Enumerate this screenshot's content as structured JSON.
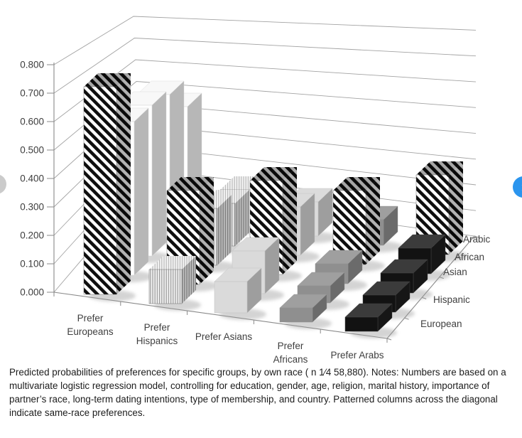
{
  "figure_viewer": {
    "prev_button_glyph": "‹",
    "next_button_glyph": "›",
    "accent_color": "#2b95ee"
  },
  "caption": "Predicted probabilities of preferences for specific groups, by own race ( n 1⁄4 58,880). Notes: Numbers are based on a multivariate logistic regression model, controlling for education, gender, age, religion, marital history, importance of partner’s race, long-term dating intentions, type of membership, and country. Patterned columns across the diagonal indicate same-race preferences.",
  "chart_data": {
    "type": "bar",
    "style": "3d-column",
    "categories": [
      "Prefer Europeans",
      "Prefer Hispanics",
      "Prefer Asians",
      "Prefer Africans",
      "Prefer Arabs"
    ],
    "series": [
      {
        "name": "European",
        "values": [
          0.73,
          0.12,
          0.11,
          0.05,
          0.05
        ]
      },
      {
        "name": "Hispanic",
        "values": [
          0.54,
          0.33,
          0.15,
          0.06,
          0.06
        ]
      },
      {
        "name": "Asian",
        "values": [
          0.53,
          0.2,
          0.33,
          0.07,
          0.07
        ]
      },
      {
        "name": "African",
        "values": [
          0.5,
          0.15,
          0.17,
          0.26,
          0.09
        ]
      },
      {
        "name": "Arabic",
        "values": [
          0.39,
          0.13,
          0.12,
          0.09,
          0.28
        ]
      }
    ],
    "y_ticks": [
      "0.000",
      "0.100",
      "0.200",
      "0.300",
      "0.400",
      "0.500",
      "0.600",
      "0.700",
      "0.800"
    ],
    "ylim": [
      0,
      0.8
    ],
    "grid": true,
    "legend_position": "depth-axis-right",
    "category_fills": [
      "#fefefe",
      "pattern:vertical-stripes",
      "#dadada",
      "#8f8f8f",
      "#121212"
    ],
    "same_race_diagonal_pattern": "black-white-diagonal-stripes",
    "series_axis_front_to_back": [
      "European",
      "Hispanic",
      "Asian",
      "African",
      "Arabic"
    ]
  }
}
